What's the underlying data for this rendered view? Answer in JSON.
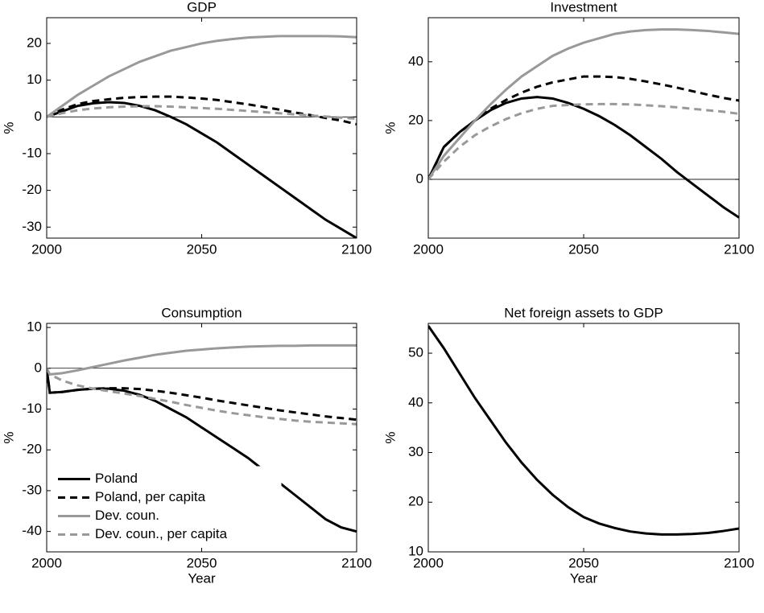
{
  "chart_data": [
    {
      "type": "line",
      "title": "GDP",
      "ylabel": "%",
      "x": [
        2000,
        2005,
        2010,
        2015,
        2020,
        2025,
        2030,
        2035,
        2040,
        2045,
        2050,
        2055,
        2060,
        2065,
        2070,
        2075,
        2080,
        2085,
        2090,
        2095,
        2100
      ],
      "series": [
        {
          "name": "Poland",
          "color": "#000000",
          "style": "solid",
          "values": [
            0,
            1.5,
            3,
            3.7,
            4,
            3.8,
            3,
            1.8,
            0,
            -2,
            -4.5,
            -7,
            -10,
            -13,
            -16,
            -19,
            -22,
            -25,
            -28,
            -30.5,
            -33
          ]
        },
        {
          "name": "Poland, per capita",
          "color": "#000000",
          "style": "dashed",
          "values": [
            0,
            2,
            3.5,
            4.3,
            4.8,
            5.2,
            5.4,
            5.5,
            5.5,
            5.3,
            5,
            4.6,
            4,
            3.4,
            2.7,
            2,
            1.2,
            0.5,
            -0.3,
            -1,
            -2
          ]
        },
        {
          "name": "Dev. coun.",
          "color": "#999999",
          "style": "solid",
          "values": [
            0,
            3,
            6,
            8.5,
            11,
            13,
            15,
            16.5,
            18,
            19,
            20,
            20.7,
            21.2,
            21.6,
            21.8,
            22,
            22,
            22,
            22,
            21.9,
            21.7
          ]
        },
        {
          "name": "Dev. coun., per capita",
          "color": "#999999",
          "style": "dashed",
          "values": [
            0,
            1,
            1.8,
            2.3,
            2.6,
            2.8,
            2.9,
            2.9,
            2.8,
            2.6,
            2.4,
            2.2,
            1.9,
            1.6,
            1.3,
            1,
            0.7,
            0.4,
            0.1,
            -0.2,
            -0.5
          ]
        }
      ],
      "xlim": [
        2000,
        2100
      ],
      "xticks": [
        2000,
        2050,
        2100
      ],
      "ylim": [
        -33,
        27
      ],
      "yticks": [
        -30,
        -20,
        -10,
        0,
        10,
        20
      ],
      "zero_line": true
    },
    {
      "type": "line",
      "title": "Investment",
      "ylabel": "%",
      "x": [
        2000,
        2005,
        2010,
        2015,
        2020,
        2025,
        2030,
        2035,
        2040,
        2045,
        2050,
        2055,
        2060,
        2065,
        2070,
        2075,
        2080,
        2085,
        2090,
        2095,
        2100
      ],
      "series": [
        {
          "name": "Poland",
          "color": "#000000",
          "style": "solid",
          "values": [
            0,
            11,
            16,
            20,
            23.5,
            26,
            27.5,
            28,
            27.5,
            26,
            24,
            21.5,
            18.5,
            15,
            11,
            7,
            2.5,
            -1.5,
            -5.5,
            -9.5,
            -13
          ]
        },
        {
          "name": "Poland, per capita",
          "color": "#000000",
          "style": "dashed",
          "values": [
            0,
            11,
            16,
            20,
            24,
            27,
            29.5,
            31.5,
            33,
            34,
            35,
            35,
            34.8,
            34.2,
            33.3,
            32.3,
            31.2,
            30,
            28.8,
            27.7,
            26.8
          ]
        },
        {
          "name": "Dev. coun.",
          "color": "#999999",
          "style": "solid",
          "values": [
            0,
            8,
            14,
            20,
            25.5,
            30.5,
            35,
            38.5,
            42,
            44.5,
            46.5,
            48,
            49.5,
            50.3,
            50.8,
            51,
            51,
            50.8,
            50.5,
            50,
            49.5
          ]
        },
        {
          "name": "Dev. coun., per capita",
          "color": "#999999",
          "style": "dashed",
          "values": [
            0,
            6,
            11,
            15,
            18,
            20.5,
            22.5,
            24,
            25,
            25.3,
            25.5,
            25.6,
            25.6,
            25.5,
            25.2,
            24.9,
            24.5,
            24,
            23.5,
            23,
            22.3
          ]
        }
      ],
      "xlim": [
        2000,
        2100
      ],
      "xticks": [
        2000,
        2050,
        2100
      ],
      "ylim": [
        -20,
        55
      ],
      "yticks": [
        0,
        20,
        40
      ],
      "zero_line": true
    },
    {
      "type": "line",
      "title": "Consumption",
      "xlabel": "Year",
      "ylabel": "%",
      "x": [
        2000,
        2001,
        2005,
        2010,
        2015,
        2020,
        2025,
        2030,
        2035,
        2040,
        2045,
        2050,
        2055,
        2060,
        2065,
        2070,
        2075,
        2080,
        2085,
        2090,
        2095,
        2100
      ],
      "series": [
        {
          "name": "Poland",
          "color": "#000000",
          "style": "solid",
          "values": [
            0,
            -6,
            -5.8,
            -5.3,
            -5,
            -5,
            -5.5,
            -6.5,
            -8,
            -10,
            -12,
            -14.5,
            -17,
            -19.5,
            -22,
            -25,
            -28,
            -31,
            -34,
            -37,
            -39,
            -40
          ]
        },
        {
          "name": "Poland, per capita",
          "color": "#000000",
          "style": "dashed",
          "values": [
            0,
            -6,
            -5.8,
            -5.3,
            -5,
            -4.9,
            -4.9,
            -5.1,
            -5.5,
            -6,
            -6.6,
            -7.2,
            -7.9,
            -8.5,
            -9.1,
            -9.7,
            -10.3,
            -10.8,
            -11.3,
            -11.8,
            -12.2,
            -12.6
          ]
        },
        {
          "name": "Dev. coun.",
          "color": "#999999",
          "style": "solid",
          "values": [
            0,
            -1.5,
            -1.2,
            -0.5,
            0.3,
            1.1,
            1.9,
            2.6,
            3.3,
            3.8,
            4.3,
            4.6,
            4.9,
            5.1,
            5.3,
            5.4,
            5.5,
            5.5,
            5.6,
            5.6,
            5.6,
            5.6
          ]
        },
        {
          "name": "Dev. coun., per capita",
          "color": "#999999",
          "style": "dashed",
          "values": [
            0,
            -1.5,
            -3,
            -4.2,
            -5,
            -5.6,
            -6.2,
            -6.8,
            -7.5,
            -8.2,
            -9,
            -9.7,
            -10.4,
            -11,
            -11.5,
            -12,
            -12.4,
            -12.8,
            -13.1,
            -13.3,
            -13.5,
            -13.7
          ]
        }
      ],
      "xlim": [
        2000,
        2100
      ],
      "xticks": [
        2000,
        2050,
        2100
      ],
      "ylim": [
        -45,
        11
      ],
      "yticks": [
        -40,
        -30,
        -20,
        -10,
        0,
        10
      ],
      "zero_line": true,
      "legend": "lower left"
    },
    {
      "type": "line",
      "title": "Net foreign assets to GDP",
      "xlabel": "Year",
      "ylabel": "%",
      "x": [
        2000,
        2005,
        2010,
        2015,
        2020,
        2025,
        2030,
        2035,
        2040,
        2045,
        2050,
        2055,
        2060,
        2065,
        2070,
        2075,
        2080,
        2085,
        2090,
        2095,
        2100
      ],
      "series": [
        {
          "color": "#000000",
          "style": "solid",
          "values": [
            55.5,
            51,
            46,
            41,
            36.5,
            32,
            28,
            24.5,
            21.5,
            19,
            17,
            15.7,
            14.8,
            14.1,
            13.7,
            13.5,
            13.5,
            13.6,
            13.8,
            14.2,
            14.7
          ]
        }
      ],
      "xlim": [
        2000,
        2100
      ],
      "xticks": [
        2000,
        2050,
        2100
      ],
      "ylim": [
        10,
        56
      ],
      "yticks": [
        10,
        20,
        30,
        40,
        50
      ],
      "zero_line": false
    }
  ]
}
